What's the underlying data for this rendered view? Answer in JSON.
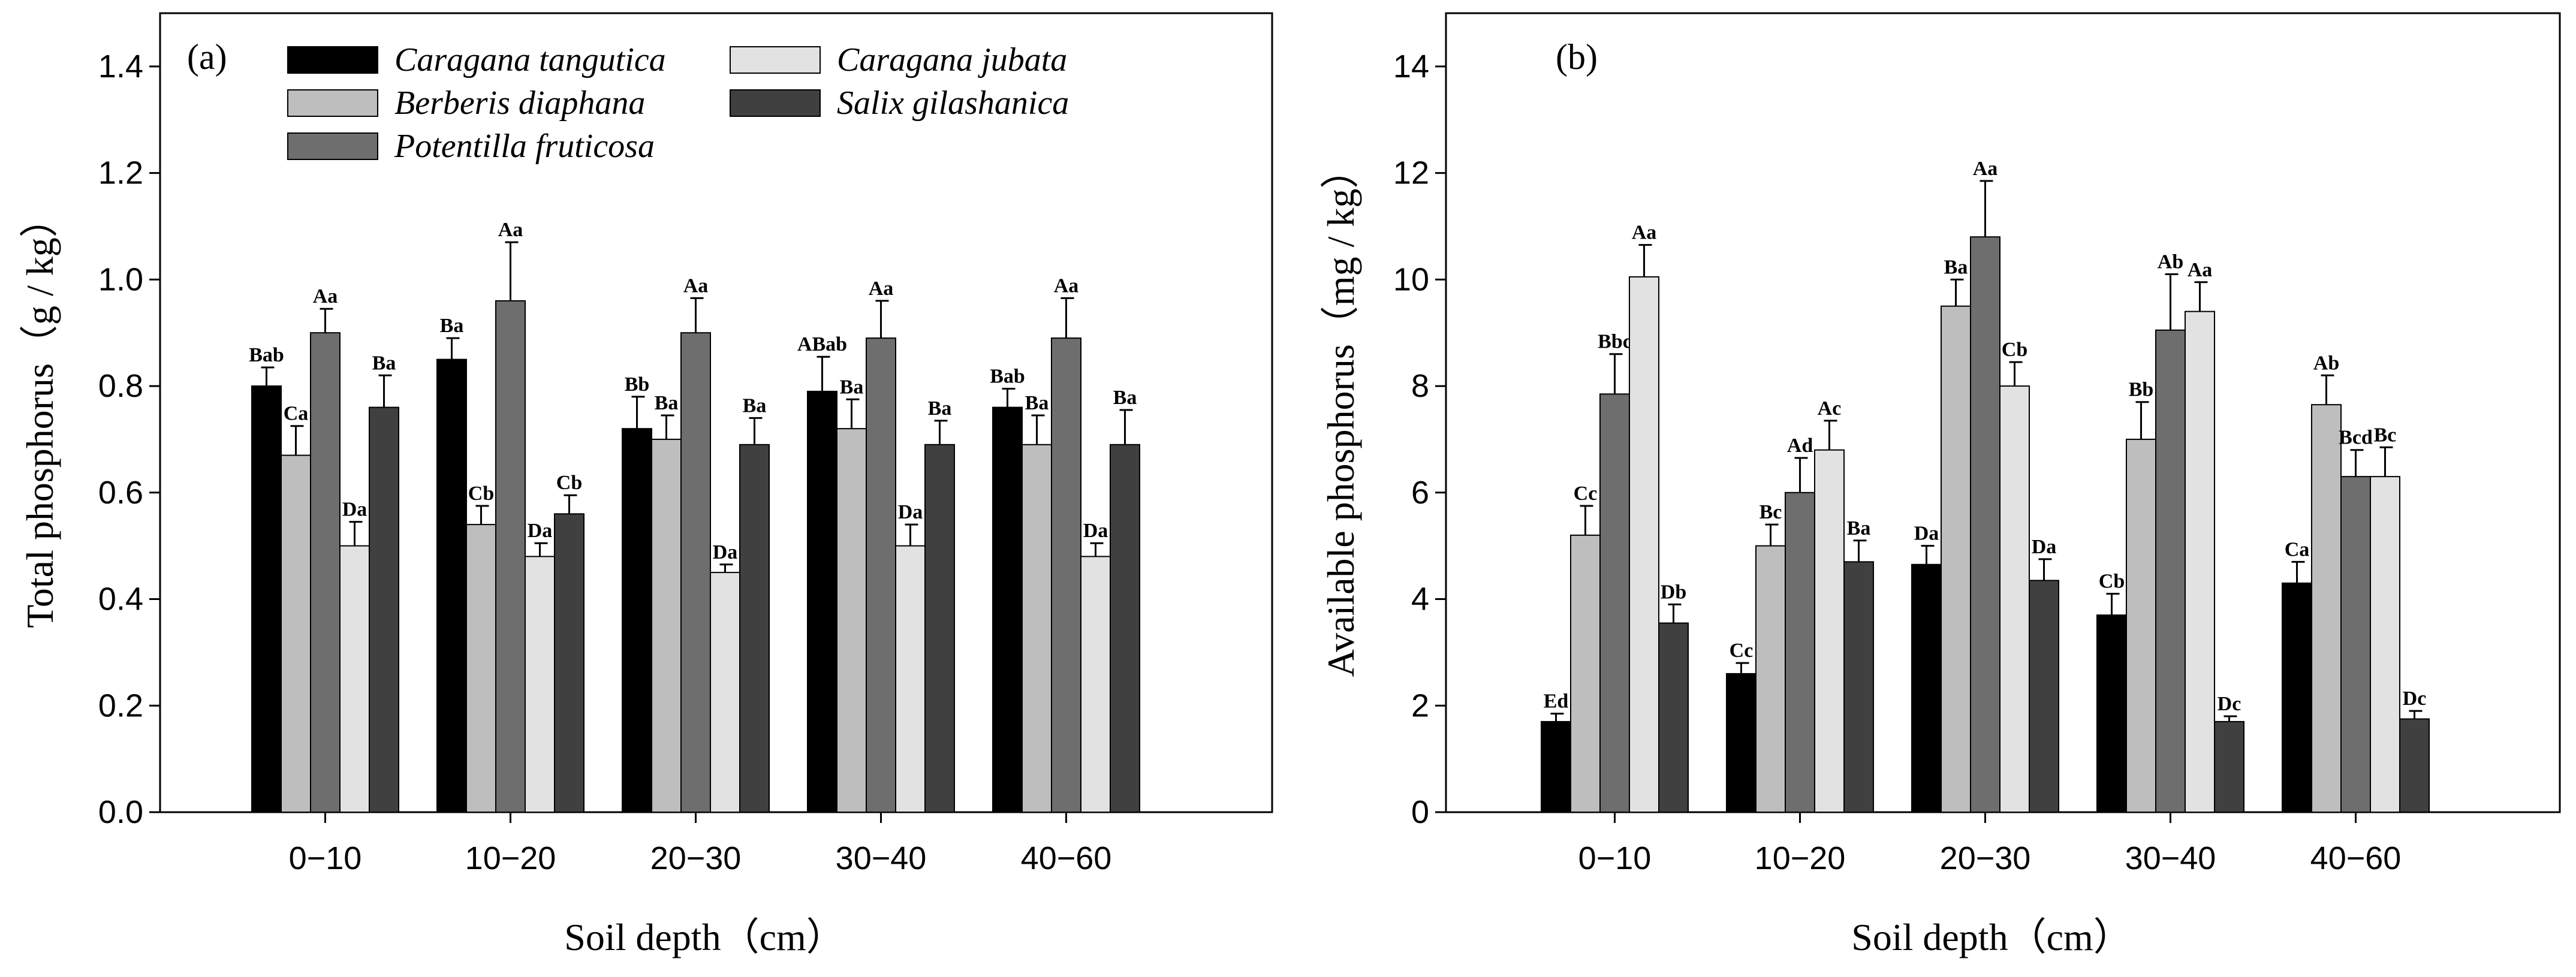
{
  "chart_data": [
    {
      "type": "bar",
      "panel": "(a)",
      "categories": [
        "0−10",
        "10−20",
        "20−30",
        "30−40",
        "40−60"
      ],
      "xlabel": "Soil depth（cm）",
      "ylabel": "Total phosphorus（g / kg）",
      "ylim": [
        0,
        1.5
      ],
      "yticks": [
        "0.0",
        "0.2",
        "0.4",
        "0.6",
        "0.8",
        "1.0",
        "1.2",
        "1.4"
      ],
      "series": [
        {
          "name": "Caragana tangutica",
          "color": "#000000",
          "values": [
            0.8,
            0.85,
            0.72,
            0.79,
            0.76
          ],
          "errors": [
            0.035,
            0.04,
            0.06,
            0.065,
            0.035
          ],
          "labels": [
            "Bab",
            "Ba",
            "Bb",
            "ABab",
            "Bab"
          ]
        },
        {
          "name": "Berberis diaphana",
          "color": "#bebebe",
          "values": [
            0.67,
            0.54,
            0.7,
            0.72,
            0.69
          ],
          "errors": [
            0.055,
            0.035,
            0.045,
            0.055,
            0.055
          ],
          "labels": [
            "Ca",
            "Cb",
            "Ba",
            "Ba",
            "Ba"
          ]
        },
        {
          "name": "Potentilla fruticosa",
          "color": "#6e6e6e",
          "values": [
            0.9,
            0.96,
            0.9,
            0.89,
            0.89
          ],
          "errors": [
            0.045,
            0.11,
            0.065,
            0.07,
            0.075
          ],
          "labels": [
            "Aa",
            "Aa",
            "Aa",
            "Aa",
            "Aa"
          ]
        },
        {
          "name": "Caragana jubata",
          "color": "#e2e2e2",
          "values": [
            0.5,
            0.48,
            0.45,
            0.5,
            0.48
          ],
          "errors": [
            0.045,
            0.025,
            0.015,
            0.04,
            0.025
          ],
          "labels": [
            "Da",
            "Da",
            "Da",
            "Da",
            "Da"
          ]
        },
        {
          "name": "Salix gilashanica",
          "color": "#404040",
          "values": [
            0.76,
            0.56,
            0.69,
            0.69,
            0.69
          ],
          "errors": [
            0.06,
            0.035,
            0.05,
            0.045,
            0.065
          ],
          "labels": [
            "Ba",
            "Cb",
            "Ba",
            "Ba",
            "Ba"
          ]
        }
      ],
      "legend": "top-left, two columns"
    },
    {
      "type": "bar",
      "panel": "(b)",
      "categories": [
        "0−10",
        "10−20",
        "20−30",
        "30−40",
        "40−60"
      ],
      "xlabel": "Soil depth（cm）",
      "ylabel": "Available phosphorus（mg / kg）",
      "ylim": [
        0,
        15
      ],
      "yticks": [
        "0",
        "2",
        "4",
        "6",
        "8",
        "10",
        "12",
        "14"
      ],
      "series": [
        {
          "name": "Caragana tangutica",
          "color": "#000000",
          "values": [
            1.7,
            2.6,
            4.65,
            3.7,
            4.3
          ],
          "errors": [
            0.15,
            0.2,
            0.35,
            0.4,
            0.4
          ],
          "labels": [
            "Ed",
            "Cc",
            "Da",
            "Cb",
            "Ca"
          ]
        },
        {
          "name": "Berberis diaphana",
          "color": "#bebebe",
          "values": [
            5.2,
            5.0,
            9.5,
            7.0,
            7.65
          ],
          "errors": [
            0.55,
            0.4,
            0.5,
            0.7,
            0.55
          ],
          "labels": [
            "Cc",
            "Bc",
            "Ba",
            "Bb",
            "Ab"
          ]
        },
        {
          "name": "Potentilla fruticosa",
          "color": "#6e6e6e",
          "values": [
            7.85,
            6.0,
            10.8,
            9.05,
            6.3
          ],
          "errors": [
            0.75,
            0.65,
            1.05,
            1.05,
            0.5
          ],
          "labels": [
            "Bbc",
            "Ad",
            "Aa",
            "Ab",
            "Bcd"
          ]
        },
        {
          "name": "Caragana jubata",
          "color": "#e2e2e2",
          "values": [
            10.05,
            6.8,
            8.0,
            9.4,
            6.3
          ],
          "errors": [
            0.6,
            0.55,
            0.45,
            0.55,
            0.55
          ],
          "labels": [
            "Aa",
            "Ac",
            "Cb",
            "Aa",
            "Bc"
          ]
        },
        {
          "name": "Salix gilashanica",
          "color": "#404040",
          "values": [
            3.55,
            4.7,
            4.35,
            1.7,
            1.75
          ],
          "errors": [
            0.35,
            0.4,
            0.4,
            0.1,
            0.15
          ],
          "labels": [
            "Db",
            "Ba",
            "Da",
            "Dc",
            "Dc"
          ]
        }
      ]
    }
  ]
}
